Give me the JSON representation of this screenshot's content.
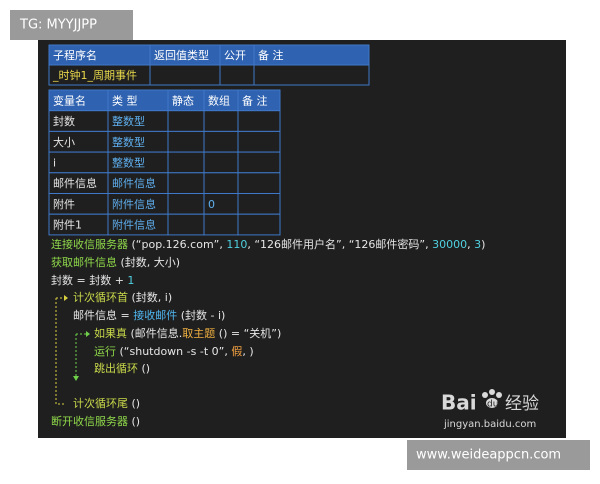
{
  "watermark_top": "TG: MYYJJPP",
  "watermark_bottom": "www.weideappcn.com",
  "logo": {
    "bai": "Bai",
    "du": "du",
    "jingyan": "经验",
    "url": "jingyan.baidu.com"
  },
  "table1": {
    "header": [
      "子程序名",
      "返回值类型",
      "公开",
      "备 注"
    ],
    "rows": [
      [
        "_时钟1_周期事件",
        "",
        "",
        ""
      ]
    ]
  },
  "table2": {
    "header": [
      "变量名",
      "类 型",
      "静态",
      "数组",
      "备 注"
    ],
    "rows": [
      [
        "封数",
        "整数型",
        "",
        "",
        ""
      ],
      [
        "大小",
        "整数型",
        "",
        "",
        ""
      ],
      [
        "i",
        "整数型",
        "",
        "",
        ""
      ],
      [
        "邮件信息",
        "邮件信息",
        "",
        "",
        ""
      ],
      [
        "附件",
        "附件信息",
        "",
        "0",
        ""
      ],
      [
        "附件1",
        "附件信息",
        "",
        "",
        ""
      ]
    ]
  },
  "code": [
    [
      {
        "text": "连接收信服务器",
        "color": "#8fd84a"
      },
      {
        "text": " (“pop.126.com”, ",
        "color": "#e6e6e6"
      },
      {
        "text": "110",
        "color": "#4fd1e0"
      },
      {
        "text": ", “126邮件用户名”, “126邮件密码”, ",
        "color": "#e6e6e6"
      },
      {
        "text": "30000",
        "color": "#4fd1e0"
      },
      {
        "text": ", ",
        "color": "#e6e6e6"
      },
      {
        "text": "3",
        "color": "#4fd1e0"
      },
      {
        "text": ")",
        "color": "#e6e6e6"
      }
    ],
    [
      {
        "text": "获取邮件信息",
        "color": "#8fd84a"
      },
      {
        "text": " (封数, 大小)",
        "color": "#e6e6e6"
      }
    ],
    [
      {
        "text": "封数 = 封数 + ",
        "color": "#e6e6e6"
      },
      {
        "text": "1",
        "color": "#4fd1e0"
      }
    ],
    [
      {
        "text": "计次循环首",
        "color": "#c9d84a"
      },
      {
        "text": " (封数, i)",
        "color": "#e6e6e6"
      }
    ],
    [
      {
        "text": "邮件信息 = ",
        "color": "#e6e6e6"
      },
      {
        "text": "接收邮件",
        "color": "#4fb6f0"
      },
      {
        "text": " (封数 - i)",
        "color": "#e6e6e6"
      }
    ],
    [
      {
        "text": "如果真",
        "color": "#c9d84a"
      },
      {
        "text": " (邮件信息.",
        "color": "#e6e6e6"
      },
      {
        "text": "取主题",
        "color": "#f0b040"
      },
      {
        "text": " () = “关机”)",
        "color": "#e6e6e6"
      }
    ],
    [
      {
        "text": "运行",
        "color": "#8fd84a"
      },
      {
        "text": " (“shutdown -s -t 0”, ",
        "color": "#e6e6e6"
      },
      {
        "text": "假",
        "color": "#f0a040"
      },
      {
        "text": ", )",
        "color": "#e6e6e6"
      }
    ],
    [
      {
        "text": "跳出循环",
        "color": "#c9d84a"
      },
      {
        "text": " ()",
        "color": "#e6e6e6"
      }
    ],
    [
      {
        "text": "计次循环尾",
        "color": "#c9d84a"
      },
      {
        "text": " ()",
        "color": "#e6e6e6"
      }
    ],
    [
      {
        "text": "断开收信服务器",
        "color": "#8fd84a"
      },
      {
        "text": " ()",
        "color": "#e6e6e6"
      }
    ]
  ]
}
